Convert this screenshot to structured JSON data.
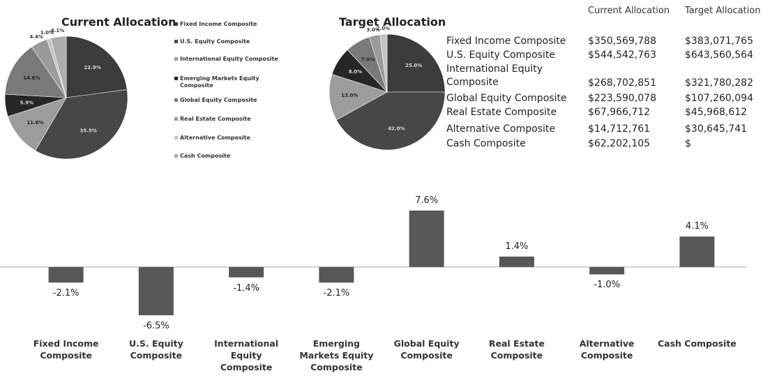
{
  "chart_data": [
    {
      "type": "pie",
      "title": "Current Allocation",
      "categories": [
        "Fixed Income Composite",
        "U.S. Equity Composite",
        "International Equity Composite",
        "Emerging Markets Equity Composite",
        "Global Equity Composite",
        "Real Estate Composite",
        "Alternative Composite",
        "Cash Composite"
      ],
      "values": [
        22.9,
        35.5,
        11.6,
        5.9,
        14.6,
        4.4,
        1.0,
        4.1
      ],
      "value_labels": [
        "22.9%",
        "35.5%",
        "11.6%",
        "5.9%",
        "14.6%",
        "4.4%",
        "1.0%",
        "4.1%"
      ],
      "colors": [
        "#3c3c3c",
        "#474747",
        "#9c9c9c",
        "#262626",
        "#7a7a7a",
        "#9a9a9a",
        "#c4c4c4",
        "#adadad"
      ]
    },
    {
      "type": "pie",
      "title": "Target Allocation",
      "values": [
        25.0,
        42.0,
        13.0,
        8.0,
        7.0,
        3.0,
        2.0
      ],
      "value_labels": [
        "25.0%",
        "42.0%",
        "13.0%",
        "8.0%",
        "7.0%",
        "3.0%",
        "2.0%"
      ],
      "colors": [
        "#3c3c3c",
        "#474747",
        "#9c9c9c",
        "#262626",
        "#7a7a7a",
        "#9a9a9a",
        "#c4c4c4"
      ]
    },
    {
      "type": "bar",
      "categories": [
        "Fixed Income Composite",
        "U.S. Equity Composite",
        "International Equity Composite",
        "Emerging Markets Equity Composite",
        "Global Equity Composite",
        "Real Estate Composite",
        "Alternative Composite",
        "Cash Composite"
      ],
      "values": [
        -2.1,
        -6.5,
        -1.4,
        -2.1,
        7.6,
        1.4,
        -1.0,
        4.1
      ],
      "value_labels": [
        "-2.1%",
        "-6.5%",
        "-1.4%",
        "-2.1%",
        "7.6%",
        "1.4%",
        "-1.0%",
        "4.1%"
      ],
      "color": "#575757",
      "ylim": [
        -8,
        9
      ]
    }
  ],
  "table": {
    "headers": [
      "Current Allocation",
      "Target Allocation"
    ],
    "rows": [
      [
        "Fixed Income Composite",
        "$350,569,788",
        "$383,071,765"
      ],
      [
        "U.S. Equity Composite",
        "$544,542,763",
        "$643,560,564"
      ],
      [
        "International Equity Composite",
        "$268,702,851",
        "$321,780,282"
      ],
      [
        "Global Equity Composite",
        "$223,590,078",
        "$107,260,094"
      ],
      [
        "Real Estate Composite",
        "$67,966,712",
        "$45,968,612"
      ],
      [
        "Alternative Composite",
        "$14,712,761",
        "$30,645,741"
      ],
      [
        "Cash Composite",
        "$62,202,105",
        "$"
      ]
    ]
  }
}
